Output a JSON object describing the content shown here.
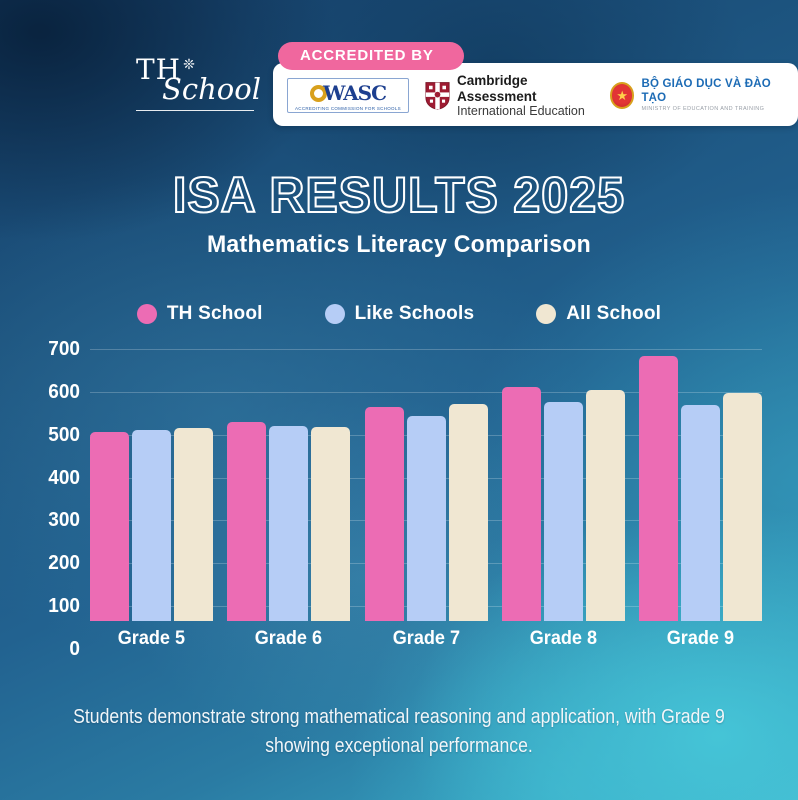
{
  "header": {
    "logo": {
      "line1": "TH",
      "star": "❊",
      "line2": "School"
    },
    "accredited_label": "ACCREDITED BY",
    "accreditations": {
      "wasc": {
        "name": "WASC",
        "caption": "ACCREDITING COMMISSION FOR SCHOOLS"
      },
      "cambridge": {
        "line1": "Cambridge Assessment",
        "line2": "International Education"
      },
      "moet": {
        "star": "★",
        "line1": "BỘ GIÁO DỤC VÀ ĐÀO TẠO",
        "line2": "MINISTRY OF EDUCATION AND TRAINING"
      }
    }
  },
  "title": "ISA RESULTS 2025",
  "subtitle": "Mathematics Literacy Comparison",
  "chart_data": {
    "type": "bar",
    "categories": [
      "Grade 5",
      "Grade 6",
      "Grade 7",
      "Grade 8",
      "Grade 9"
    ],
    "series": [
      {
        "name": "TH School",
        "color": "#ec6cb4",
        "values": [
          442,
          465,
          500,
          547,
          619
        ]
      },
      {
        "name": "Like Schools",
        "color": "#b6cdf6",
        "values": [
          446,
          456,
          479,
          510,
          505
        ]
      },
      {
        "name": "All School",
        "color": "#f0e7d2",
        "values": [
          451,
          452,
          507,
          539,
          531
        ]
      }
    ],
    "title": "ISA RESULTS 2025 — Mathematics Literacy Comparison",
    "xlabel": "",
    "ylabel": "",
    "ylim": [
      0,
      700
    ],
    "yticks": [
      0,
      100,
      200,
      300,
      400,
      500,
      600,
      700
    ],
    "grid": true,
    "legend_position": "top"
  },
  "footer": "Students demonstrate strong mathematical reasoning and application, with Grade 9 showing exceptional performance.",
  "colors": {
    "accent_pink": "#f0679e",
    "bar_pink": "#ec6cb4",
    "bar_blue": "#b6cdf6",
    "bar_cream": "#f0e7d2",
    "background_deep": "#16406a",
    "background_teal": "#41b6cd"
  }
}
